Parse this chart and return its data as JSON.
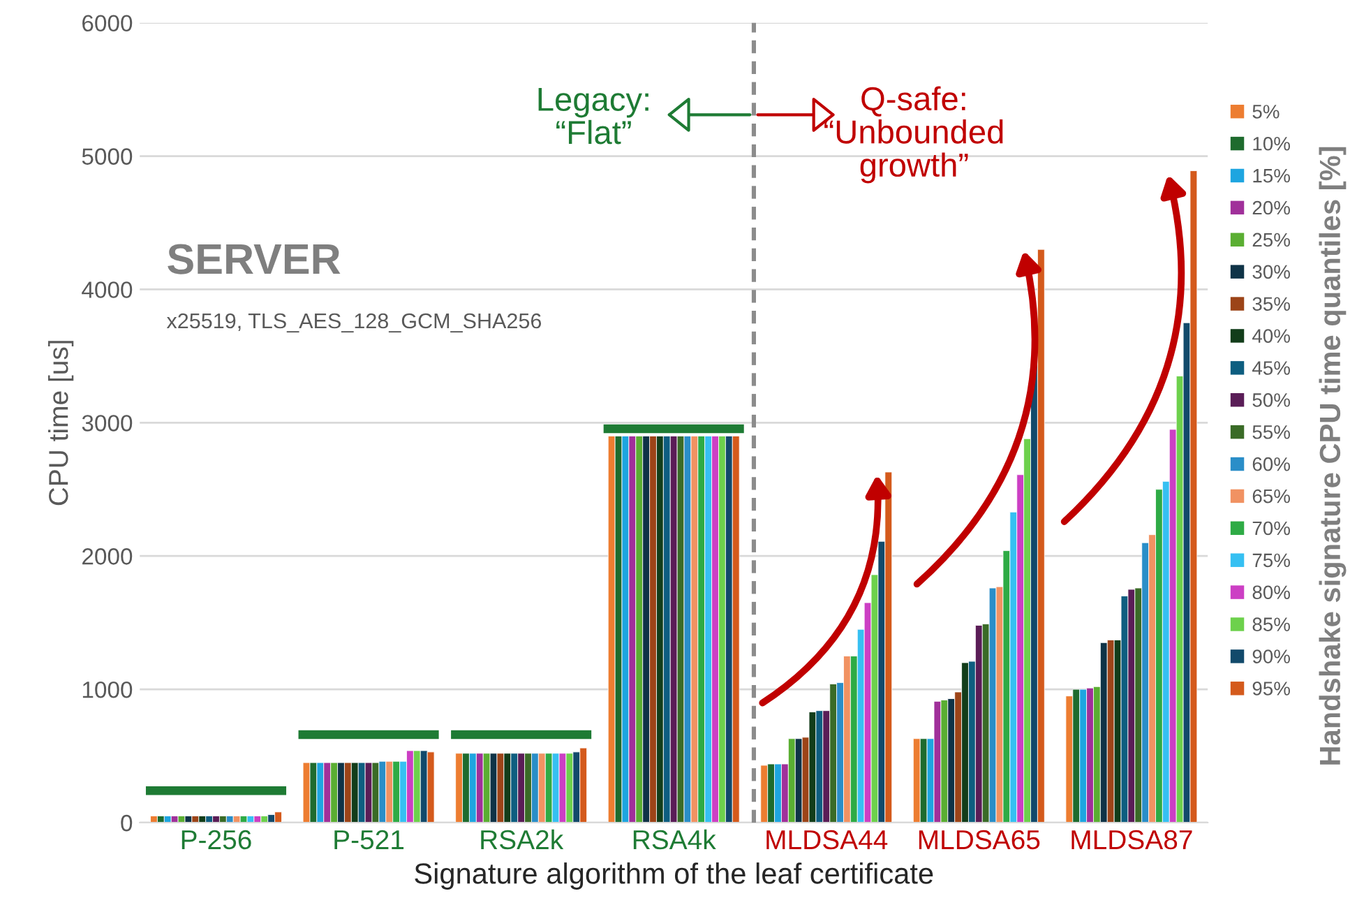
{
  "chart_data": {
    "type": "bar",
    "categories": [
      "P-256",
      "P-521",
      "RSA2k",
      "RSA4k",
      "MLDSA44",
      "MLDSA65",
      "MLDSA87"
    ],
    "xlabel": "Signature algorithm of the leaf certificate",
    "ylabel": "CPU time [us]",
    "legend_title": "Handshake signature CPU time quantiles [%]",
    "ylim": [
      0,
      6000
    ],
    "yticks": [
      0,
      1000,
      2000,
      3000,
      4000,
      5000,
      6000
    ],
    "grid": "y",
    "legend": "right",
    "annotations": [
      "SERVER",
      "x25519, TLS_AES_128_GCM_SHA256",
      "Legacy:\n“Flat”",
      "Q-safe:\n“Unbounded\ngrowth”"
    ],
    "series": [
      {
        "name": "5%",
        "color": "#ed7d31",
        "values": [
          50,
          450,
          520,
          2900,
          430,
          630,
          950
        ]
      },
      {
        "name": "10%",
        "color": "#1e6b2e",
        "values": [
          50,
          450,
          520,
          2900,
          440,
          630,
          1000
        ]
      },
      {
        "name": "15%",
        "color": "#1ea5e0",
        "values": [
          50,
          450,
          520,
          2900,
          440,
          630,
          1000
        ]
      },
      {
        "name": "20%",
        "color": "#a0309a",
        "values": [
          50,
          450,
          520,
          2900,
          440,
          910,
          1010
        ]
      },
      {
        "name": "25%",
        "color": "#5aae32",
        "values": [
          50,
          450,
          520,
          2900,
          630,
          920,
          1020
        ]
      },
      {
        "name": "30%",
        "color": "#0f3347",
        "values": [
          50,
          450,
          520,
          2900,
          630,
          930,
          1350
        ]
      },
      {
        "name": "35%",
        "color": "#9c4418",
        "values": [
          50,
          450,
          520,
          2900,
          640,
          980,
          1370
        ]
      },
      {
        "name": "40%",
        "color": "#123d1a",
        "values": [
          50,
          450,
          520,
          2900,
          830,
          1200,
          1370
        ]
      },
      {
        "name": "45%",
        "color": "#0e5e80",
        "values": [
          50,
          450,
          520,
          2900,
          840,
          1210,
          1700
        ]
      },
      {
        "name": "50%",
        "color": "#5a1d57",
        "values": [
          50,
          450,
          520,
          2900,
          840,
          1480,
          1750
        ]
      },
      {
        "name": "55%",
        "color": "#3a6b27",
        "values": [
          50,
          450,
          520,
          2900,
          1040,
          1490,
          1760
        ]
      },
      {
        "name": "60%",
        "color": "#2a8ec8",
        "values": [
          50,
          460,
          520,
          2900,
          1050,
          1760,
          2100
        ]
      },
      {
        "name": "65%",
        "color": "#f19262",
        "values": [
          50,
          460,
          520,
          2900,
          1250,
          1770,
          2160
        ]
      },
      {
        "name": "70%",
        "color": "#2eab45",
        "values": [
          50,
          460,
          520,
          2900,
          1250,
          2040,
          2500
        ]
      },
      {
        "name": "75%",
        "color": "#36c0f2",
        "values": [
          50,
          460,
          520,
          2900,
          1450,
          2330,
          2560
        ]
      },
      {
        "name": "80%",
        "color": "#cc3fc4",
        "values": [
          50,
          540,
          520,
          2900,
          1650,
          2610,
          2950
        ]
      },
      {
        "name": "85%",
        "color": "#6dd14c",
        "values": [
          50,
          540,
          520,
          2900,
          1860,
          2880,
          3350
        ]
      },
      {
        "name": "90%",
        "color": "#124a6b",
        "values": [
          60,
          540,
          530,
          2900,
          2110,
          3440,
          3750
        ]
      },
      {
        "name": "95%",
        "color": "#d45a1c",
        "values": [
          80,
          530,
          560,
          2900,
          2630,
          4300,
          4890
        ]
      }
    ]
  }
}
